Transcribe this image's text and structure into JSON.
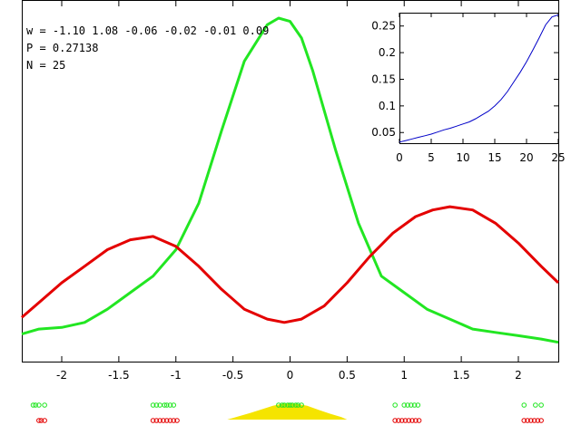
{
  "annotations": {
    "w": "w = -1.10 1.08 -0.06 -0.02 -0.01 0.09",
    "P": "P = 0.27138",
    "N": "N = 25"
  },
  "colors": {
    "red": "#e40000",
    "green": "#22e622",
    "blue": "#0000c8",
    "yellow": "#f5e400"
  },
  "chart_data": [
    {
      "type": "line",
      "xlim": [
        -2.35,
        2.35
      ],
      "ylim": [
        0,
        1
      ],
      "x_ticks": [
        "-2",
        "-1.5",
        "-1",
        "-0.5",
        "0",
        "0.5",
        "1",
        "1.5",
        "2"
      ],
      "x_tick_values": [
        -2,
        -1.5,
        -1,
        -0.5,
        0,
        0.5,
        1,
        1.5,
        2
      ],
      "series": [
        {
          "color": "#22e622",
          "x": [
            -2.35,
            -2.2,
            -2.0,
            -1.8,
            -1.6,
            -1.4,
            -1.2,
            -1.0,
            -0.8,
            -0.6,
            -0.4,
            -0.2,
            -0.1,
            0.0,
            0.1,
            0.2,
            0.4,
            0.6,
            0.8,
            1.0,
            1.2,
            1.4,
            1.6,
            1.8,
            2.0,
            2.2,
            2.35
          ],
          "y": [
            0.045,
            0.06,
            0.065,
            0.08,
            0.12,
            0.17,
            0.22,
            0.3,
            0.44,
            0.66,
            0.87,
            0.98,
            1.0,
            0.99,
            0.94,
            0.84,
            0.6,
            0.38,
            0.22,
            0.17,
            0.12,
            0.09,
            0.06,
            0.05,
            0.04,
            0.03,
            0.02
          ]
        },
        {
          "color": "#e40000",
          "x": [
            -2.35,
            -2.2,
            -2.0,
            -1.8,
            -1.6,
            -1.4,
            -1.2,
            -1.0,
            -0.8,
            -0.6,
            -0.4,
            -0.2,
            -0.05,
            0.1,
            0.3,
            0.5,
            0.7,
            0.9,
            1.1,
            1.25,
            1.4,
            1.6,
            1.8,
            2.0,
            2.2,
            2.35
          ],
          "y": [
            0.095,
            0.14,
            0.2,
            0.25,
            0.3,
            0.33,
            0.34,
            0.31,
            0.25,
            0.18,
            0.12,
            0.09,
            0.08,
            0.09,
            0.13,
            0.2,
            0.28,
            0.35,
            0.4,
            0.42,
            0.43,
            0.42,
            0.38,
            0.32,
            0.25,
            0.2
          ]
        }
      ],
      "shaded_area": {
        "color": "#f5e400",
        "x": [
          -0.55,
          -0.45,
          -0.35,
          -0.25,
          -0.15,
          -0.05,
          0.05,
          0.15,
          0.25,
          0.35,
          0.45,
          0.5
        ],
        "y": [
          0.0,
          0.2,
          0.4,
          0.62,
          0.85,
          1.0,
          0.98,
          0.85,
          0.6,
          0.36,
          0.15,
          0.0
        ]
      },
      "markers": {
        "green": [
          -2.25,
          -2.23,
          -2.2,
          -2.15,
          -1.2,
          -1.17,
          -1.14,
          -1.1,
          -1.08,
          -1.05,
          -1.02,
          -0.1,
          -0.07,
          -0.05,
          -0.02,
          0.0,
          0.02,
          0.05,
          0.07,
          0.1,
          0.92,
          1.0,
          1.03,
          1.06,
          1.09,
          1.12,
          2.05,
          2.15,
          2.2
        ],
        "red": [
          -2.2,
          -2.18,
          -2.15,
          -1.2,
          -1.17,
          -1.14,
          -1.11,
          -1.08,
          -1.05,
          -1.02,
          -0.99,
          0.92,
          0.95,
          0.98,
          1.01,
          1.04,
          1.07,
          1.1,
          1.13,
          2.05,
          2.08,
          2.11,
          2.14,
          2.17,
          2.2
        ]
      }
    },
    {
      "type": "line",
      "xlim": [
        0,
        25
      ],
      "ylim": [
        0.03,
        0.275
      ],
      "x_ticks": [
        "0",
        "5",
        "10",
        "15",
        "20",
        "25"
      ],
      "x_tick_values": [
        0,
        5,
        10,
        15,
        20,
        25
      ],
      "y_ticks": [
        "0.05",
        "0.1",
        "0.15",
        "0.2",
        "0.25"
      ],
      "y_tick_values": [
        0.05,
        0.1,
        0.15,
        0.2,
        0.25
      ],
      "series": [
        {
          "color": "#0000c8",
          "x": [
            0,
            1,
            2,
            3,
            4,
            5,
            6,
            7,
            8,
            9,
            10,
            11,
            12,
            13,
            14,
            15,
            16,
            17,
            18,
            19,
            20,
            21,
            22,
            23,
            24,
            25
          ],
          "y": [
            0.032,
            0.035,
            0.038,
            0.041,
            0.044,
            0.047,
            0.051,
            0.055,
            0.058,
            0.062,
            0.066,
            0.07,
            0.076,
            0.083,
            0.09,
            0.1,
            0.112,
            0.127,
            0.145,
            0.163,
            0.183,
            0.205,
            0.228,
            0.252,
            0.267,
            0.271
          ]
        }
      ]
    }
  ]
}
